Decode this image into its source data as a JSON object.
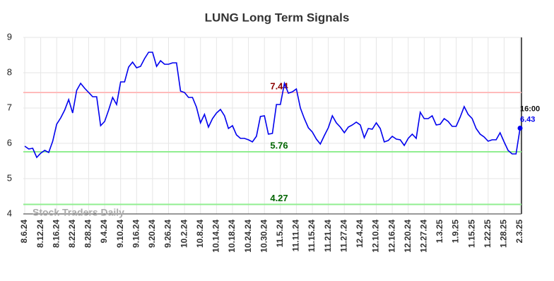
{
  "chart_data": {
    "type": "line",
    "title": "LUNG Long Term Signals",
    "categories": [
      "8.6.24",
      null,
      null,
      null,
      "8.12.24",
      null,
      null,
      null,
      "8.16.24",
      null,
      null,
      null,
      "8.22.24",
      null,
      null,
      null,
      "8.28.24",
      null,
      null,
      null,
      "9.4.24",
      null,
      null,
      null,
      "9.10.24",
      null,
      null,
      null,
      "9.16.24",
      null,
      null,
      null,
      "9.20.24",
      null,
      null,
      null,
      "9.26.24",
      null,
      null,
      null,
      "10.2.24",
      null,
      null,
      null,
      "10.8.24",
      null,
      null,
      null,
      "10.14.24",
      null,
      null,
      null,
      "10.18.24",
      null,
      null,
      null,
      "10.24.24",
      null,
      null,
      null,
      "10.30.24",
      null,
      null,
      null,
      "11.5.24",
      null,
      null,
      null,
      "11.11.24",
      null,
      null,
      null,
      "11.15.24",
      null,
      null,
      null,
      "11.21.24",
      null,
      null,
      null,
      "11.27.24",
      null,
      null,
      null,
      "12.4.24",
      null,
      null,
      null,
      "12.10.24",
      null,
      null,
      null,
      "12.16.24",
      null,
      null,
      null,
      "12.20.24",
      null,
      null,
      null,
      "12.27.24",
      null,
      null,
      null,
      "1.3.25",
      null,
      null,
      null,
      "1.9.25",
      null,
      null,
      null,
      "1.15.25",
      null,
      null,
      null,
      "1.22.25",
      null,
      null,
      null,
      "1.28.25",
      null,
      null,
      null,
      "2.3.25"
    ],
    "values": [
      5.92,
      5.84,
      5.86,
      5.6,
      5.72,
      5.8,
      5.74,
      6.06,
      6.54,
      6.72,
      6.94,
      7.24,
      6.86,
      7.5,
      7.7,
      7.56,
      7.44,
      7.32,
      7.32,
      6.5,
      6.62,
      6.94,
      7.3,
      7.1,
      7.74,
      7.74,
      8.16,
      8.3,
      8.14,
      8.18,
      8.4,
      8.58,
      8.58,
      8.18,
      8.34,
      8.24,
      8.24,
      8.28,
      8.28,
      7.48,
      7.44,
      7.3,
      7.3,
      7.02,
      6.58,
      6.82,
      6.46,
      6.7,
      6.86,
      6.96,
      6.78,
      6.42,
      6.5,
      6.24,
      6.14,
      6.14,
      6.1,
      6.04,
      6.2,
      6.76,
      6.78,
      6.26,
      6.28,
      7.1,
      7.1,
      7.7,
      7.42,
      7.46,
      7.54,
      7.0,
      6.7,
      6.44,
      6.32,
      6.12,
      5.98,
      6.22,
      6.44,
      6.78,
      6.58,
      6.46,
      6.3,
      6.46,
      6.52,
      6.6,
      6.52,
      6.16,
      6.42,
      6.4,
      6.58,
      6.42,
      6.04,
      6.08,
      6.2,
      6.12,
      6.1,
      5.94,
      6.14,
      6.26,
      6.14,
      6.88,
      6.7,
      6.7,
      6.78,
      6.52,
      6.54,
      6.7,
      6.62,
      6.48,
      6.48,
      6.74,
      7.04,
      6.82,
      6.7,
      6.42,
      6.26,
      6.18,
      6.06,
      6.1,
      6.1,
      6.3,
      6.04,
      5.8,
      5.7,
      5.7,
      6.43
    ],
    "color": "#0000ee",
    "ylim": [
      4,
      9
    ],
    "yticks": [
      4,
      5,
      6,
      7,
      8,
      9
    ],
    "grid": true,
    "hlines": [
      {
        "value": 7.44,
        "color": "#ffbbbb",
        "label_color": "#8b0000"
      },
      {
        "value": 5.76,
        "color": "#90ee90",
        "label_color": "#006400"
      },
      {
        "value": 4.27,
        "color": "#90ee90",
        "label_color": "#006400"
      }
    ],
    "last_point_time": "16:00",
    "watermark": "Stock Traders Daily"
  }
}
